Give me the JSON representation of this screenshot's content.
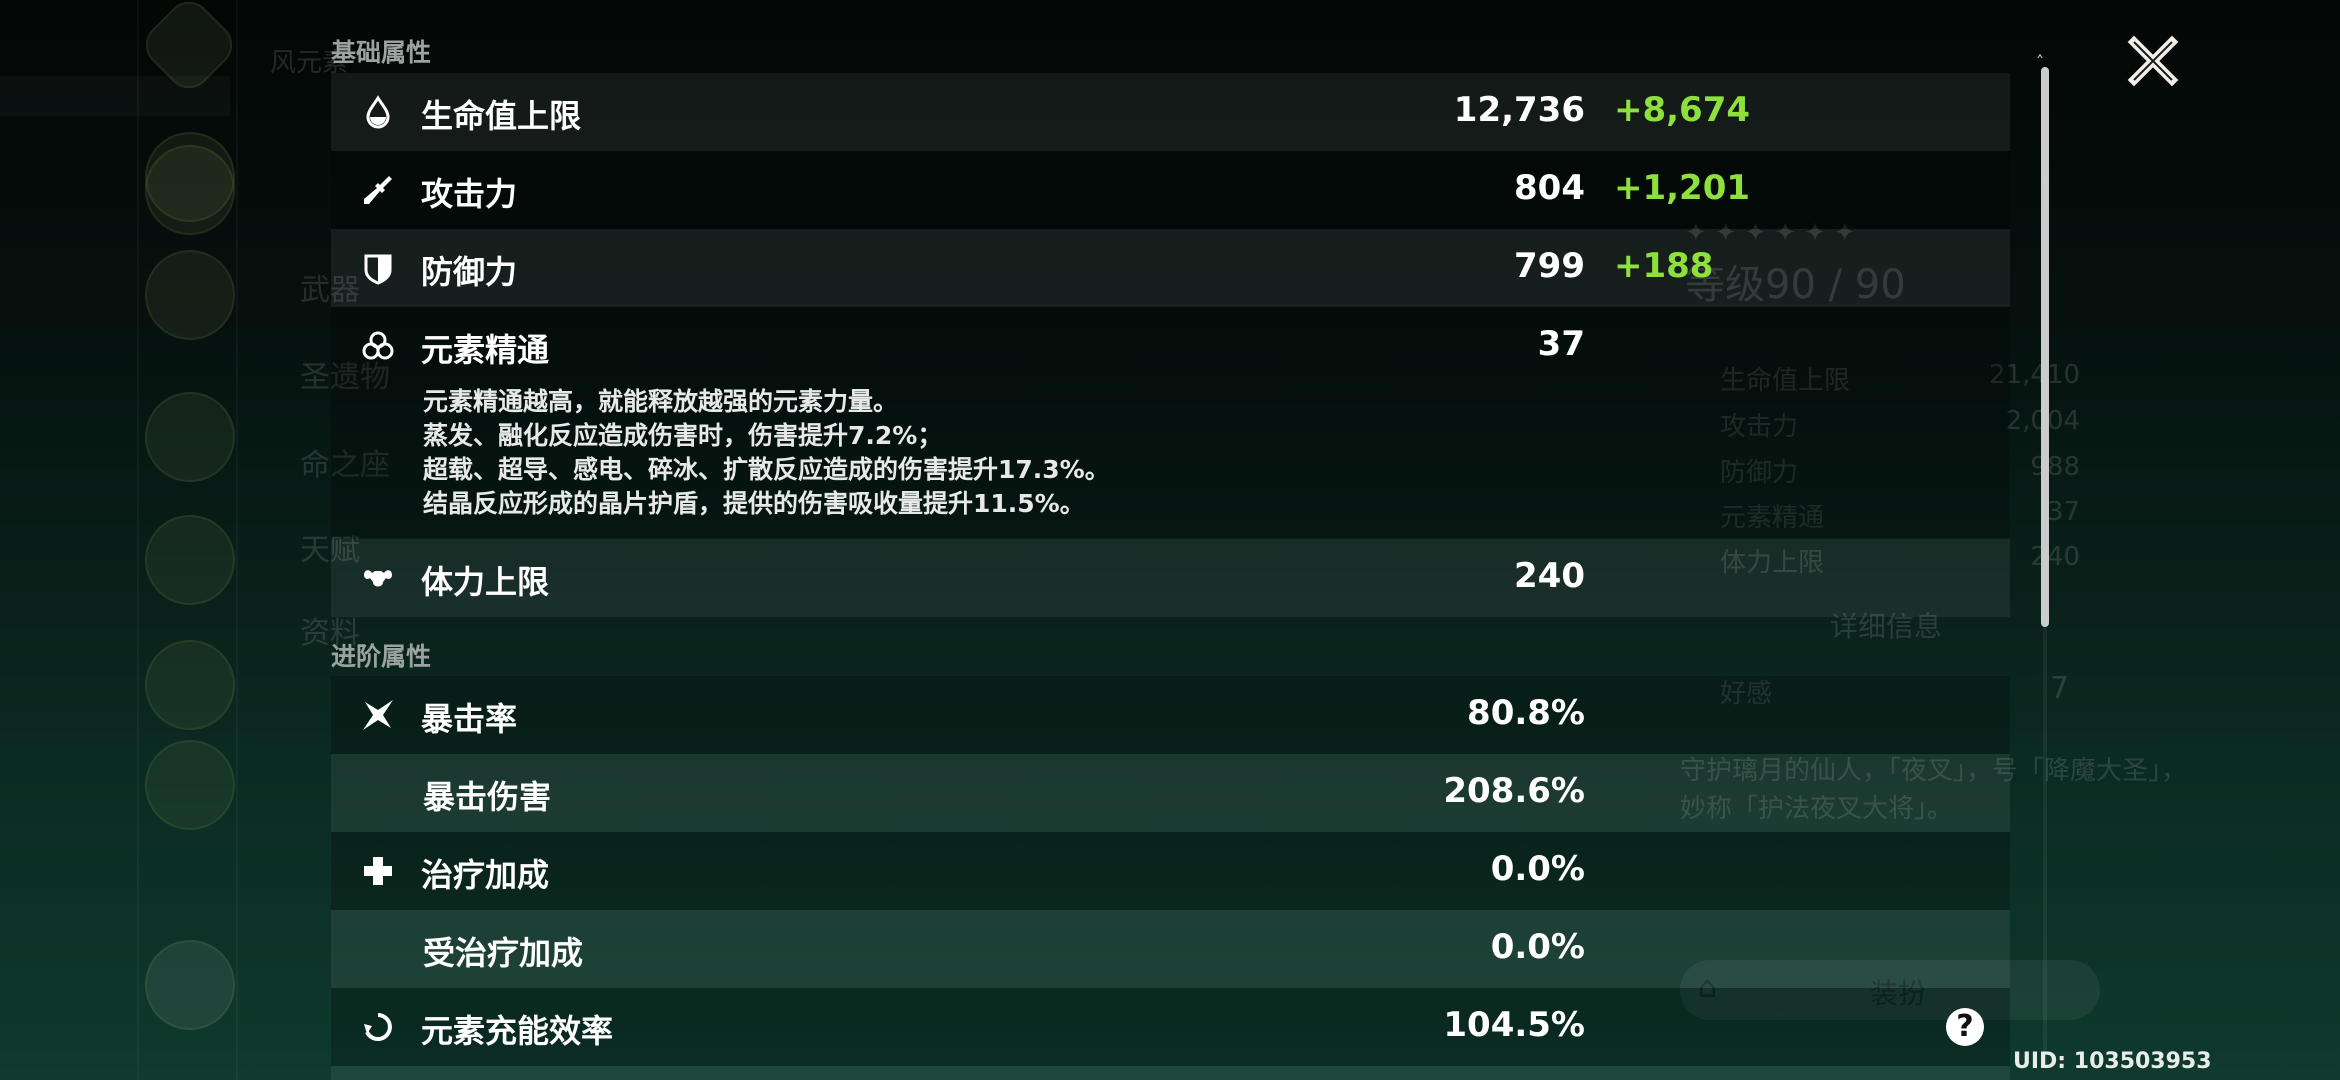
{
  "background": {
    "sidebar_labels": [
      "风元素",
      "武器",
      "圣遗物",
      "命之座",
      "天赋",
      "资料"
    ],
    "level": "等级90 / 90",
    "stats": [
      {
        "label": "生命值上限",
        "value": "21,410"
      },
      {
        "label": "攻击力",
        "value": "2,004"
      },
      {
        "label": "防御力",
        "value": "988"
      },
      {
        "label": "元素精通",
        "value": "37"
      },
      {
        "label": "体力上限",
        "value": "240"
      }
    ],
    "details_label": "详细信息",
    "friendship_label": "好感",
    "friendship_value": "7",
    "description": [
      "守护璃月的仙人，「夜叉」，号「降魔大圣」，",
      "妙称「护法夜叉大将」。"
    ],
    "outfit_button": "装扮"
  },
  "base_section": {
    "title": "基础属性",
    "rows": [
      {
        "icon": "hp-drop-icon",
        "label": "生命值上限",
        "value": "12,736",
        "bonus": "+8,674"
      },
      {
        "icon": "sword-icon",
        "label": "攻击力",
        "value": "804",
        "bonus": "+1,201"
      },
      {
        "icon": "shield-icon",
        "label": "防御力",
        "value": "799",
        "bonus": "+188"
      },
      {
        "icon": "elemental-mastery-icon",
        "label": "元素精通",
        "value": "37",
        "description": [
          "元素精通越高，就能释放越强的元素力量。",
          "蒸发、融化反应造成伤害时，伤害提升7.2%；",
          "超载、超导、感电、碎冰、扩散反应造成的伤害提升17.3%。",
          "结晶反应形成的晶片护盾，提供的伤害吸收量提升11.5%。"
        ]
      },
      {
        "icon": "stamina-icon",
        "label": "体力上限",
        "value": "240"
      }
    ]
  },
  "advanced_section": {
    "title": "进阶属性",
    "rows": [
      {
        "icon": "crit-star-icon",
        "label": "暴击率",
        "value": "80.8%"
      },
      {
        "label": "暴击伤害",
        "value": "208.6%"
      },
      {
        "icon": "healing-cross-icon",
        "label": "治疗加成",
        "value": "0.0%"
      },
      {
        "label": "受治疗加成",
        "value": "0.0%"
      },
      {
        "icon": "energy-recharge-icon",
        "label": "元素充能效率",
        "value": "104.5%"
      }
    ]
  },
  "uid": "UID: 103503953",
  "help_label": "?",
  "colors": {
    "bonus": "#8ee03c",
    "background_top": "#030706",
    "background_bottom": "#0f3a2d"
  }
}
